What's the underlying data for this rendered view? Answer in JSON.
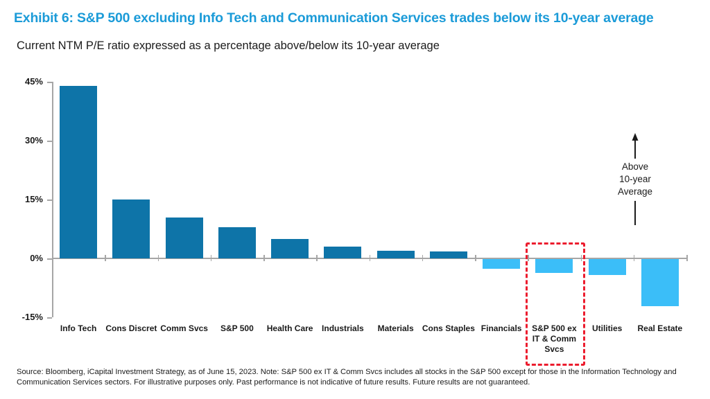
{
  "header": {
    "title": "Exhibit 6: S&P 500 excluding Info Tech and Communication Services trades below its 10-year average",
    "title_color": "#1b9bd8",
    "subtitle": "Current NTM P/E ratio expressed as a percentage above/below its 10-year average"
  },
  "chart_data": {
    "type": "bar",
    "title": "Current NTM P/E ratio expressed as a percentage above/below its 10-year average",
    "categories": [
      "Info Tech",
      "Cons Discret",
      "Comm Svcs",
      "S&P 500",
      "Health Care",
      "Industrials",
      "Materials",
      "Cons Staples",
      "Financials",
      "S&P 500 ex\nIT & Comm\nSvcs",
      "Utilities",
      "Real Estate"
    ],
    "values": [
      44,
      15,
      10.5,
      8,
      5,
      3,
      2,
      1.8,
      -2.5,
      -3.5,
      -4,
      -12
    ],
    "unit": "%",
    "xlabel": "",
    "ylabel": "",
    "ylim": [
      -15,
      45
    ],
    "yticks": [
      {
        "value": 45,
        "label": "45%"
      },
      {
        "value": 30,
        "label": "30%"
      },
      {
        "value": 15,
        "label": "15%"
      },
      {
        "value": 0,
        "label": "0%"
      },
      {
        "value": -15,
        "label": "-15%"
      }
    ],
    "grid": false,
    "legend_position": "none",
    "colors": {
      "positive_bar": "#0e74a8",
      "negative_bar": "#3bbef8",
      "axis": "#a6a6a6",
      "highlight_box": "#ec1c2e"
    },
    "highlight": {
      "category": "S&P 500 ex IT & Comm Svcs",
      "index": 9,
      "style": "red dashed box"
    },
    "annotation": {
      "text": "Above\n10-year\nAverage",
      "position": "between Utilities and Real Estate, arrow pointing up"
    }
  },
  "footer": {
    "text": "Source: Bloomberg, iCapital Investment Strategy, as of June 15, 2023. Note: S&P 500 ex IT & Comm Svcs includes all stocks in the S&P 500 except for those in the Information Technology and Communication Services sectors. For illustrative purposes only. Past performance is not indicative of future results. Future results are not guaranteed."
  }
}
